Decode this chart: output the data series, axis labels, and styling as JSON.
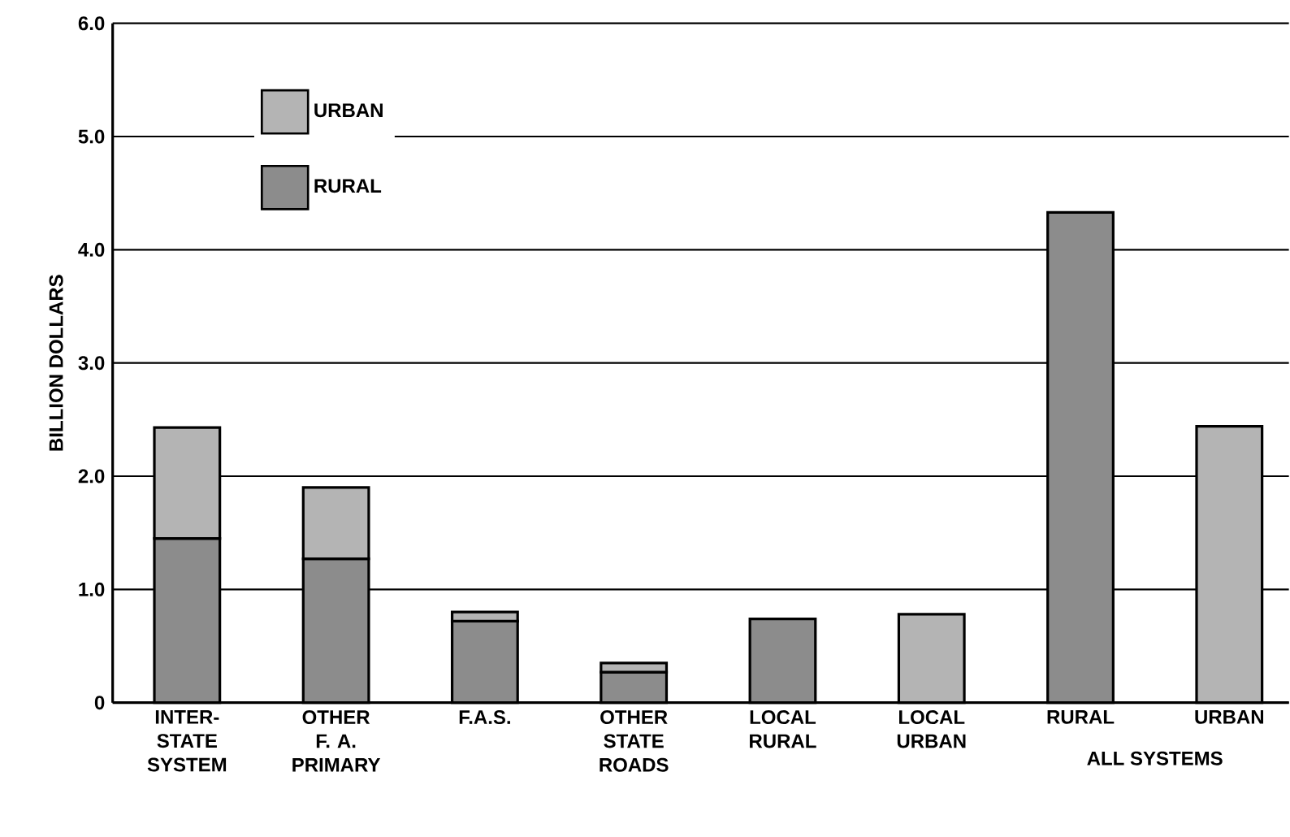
{
  "chart_data": {
    "type": "bar",
    "stacked": true,
    "ylabel": "BILLION DOLLARS",
    "categories": [
      "INTER- STATE SYSTEM",
      "OTHER F. A. PRIMARY",
      "F.A.S.",
      "OTHER STATE ROADS",
      "LOCAL RURAL",
      "LOCAL URBAN",
      "RURAL",
      "URBAN"
    ],
    "series": [
      {
        "name": "RURAL",
        "color": "#8c8c8c",
        "values": [
          1.45,
          1.27,
          0.72,
          0.27,
          0.74,
          null,
          4.33,
          null
        ]
      },
      {
        "name": "URBAN",
        "color": "#b4b4b4",
        "values": [
          0.98,
          0.63,
          0.08,
          0.08,
          null,
          0.78,
          null,
          2.44
        ]
      }
    ],
    "ylim": [
      0,
      6
    ],
    "yticks": [
      0,
      {
        "value": 1,
        "label": "1.0"
      },
      {
        "value": 2,
        "label": "2.0"
      },
      {
        "value": 3,
        "label": "3.0"
      },
      {
        "value": 4,
        "label": "4.0"
      },
      {
        "value": 5,
        "label": "5.0"
      },
      {
        "value": 6,
        "label": "6.0"
      }
    ],
    "grid": "y",
    "legend": "top left",
    "annotations": [
      {
        "text": "ALL SYSTEMS",
        "x": "RURAL",
        "y": 0
      }
    ]
  }
}
